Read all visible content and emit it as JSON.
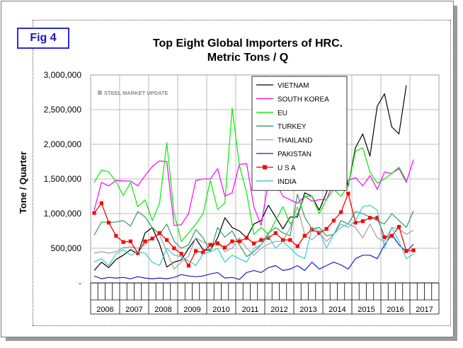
{
  "figure_label": "Fig 4",
  "chart_data": {
    "type": "line",
    "title": "Top Eight Global Importers of HRC.",
    "subtitle": "Metric Tons / Q",
    "ylabel": "Tone / Quarter",
    "xlabel": "",
    "ylim": [
      0,
      3000000
    ],
    "y_ticks": [
      0,
      500000,
      1000000,
      1500000,
      2000000,
      2500000,
      3000000
    ],
    "y_tick_labels": [
      "-",
      "500,000",
      "1,000,000",
      "1,500,000",
      "2,000,000",
      "2,500,000",
      "3,000,000"
    ],
    "x_tick_labels": [
      "2006",
      "2007",
      "2008",
      "2009",
      "2010",
      "2011",
      "2012",
      "2013",
      "2014",
      "2015",
      "2016",
      "2017"
    ],
    "quarters_per_year": 4,
    "grid": true,
    "legend_position": "top-right",
    "watermark": "STEEL MARKET UPDATE",
    "series": [
      {
        "name": "VIETNAM",
        "color": "#000000",
        "marker": "none",
        "values": [
          180000,
          300000,
          220000,
          340000,
          400000,
          480000,
          420000,
          720000,
          800000,
          560000,
          230000,
          300000,
          330000,
          500000,
          640000,
          480000,
          470000,
          650000,
          940000,
          800000,
          750000,
          650000,
          850000,
          900000,
          1120000,
          950000,
          780000,
          950000,
          950000,
          1300000,
          1250000,
          1050000,
          1300000,
          1700000,
          1800000,
          1400000,
          1950000,
          2150000,
          1830000,
          2550000,
          2730000,
          2250000,
          2150000,
          2850000
        ]
      },
      {
        "name": "SOUTH KOREA",
        "color": "#ff00ff",
        "marker": "none",
        "values": [
          1050000,
          1450000,
          1400000,
          1480000,
          1470000,
          1470000,
          1400000,
          1550000,
          1680000,
          1760000,
          1750000,
          830000,
          840000,
          1000000,
          1480000,
          1500000,
          1500000,
          1650000,
          1250000,
          1300000,
          1710000,
          1720000,
          1100000,
          830000,
          1470000,
          1450000,
          1250000,
          1200000,
          1150000,
          1250000,
          1180000,
          1200000,
          1200000,
          1450000,
          1430000,
          1480000,
          1520000,
          1400000,
          1550000,
          1350000,
          1600000,
          1580000,
          1650000,
          1450000,
          1780000
        ]
      },
      {
        "name": "EU",
        "color": "#00ee00",
        "marker": "none",
        "values": [
          1450000,
          1630000,
          1600000,
          1460000,
          1260000,
          1450000,
          1100000,
          1200000,
          900000,
          1150000,
          2020000,
          1000000,
          600000,
          720000,
          850000,
          1000000,
          1480000,
          1060000,
          1150000,
          2520000,
          1700000,
          1300000,
          700000,
          800000,
          700000,
          900000,
          1100000,
          850000,
          1000000,
          1250000,
          1250000,
          1000000,
          1200000,
          1350000,
          1250000,
          1400000,
          1900000,
          1950000,
          1600000,
          1440000,
          1500000,
          1580000,
          1670000,
          1480000
        ]
      },
      {
        "name": "TURKEY",
        "color": "#339966",
        "marker": "none",
        "values": [
          690000,
          880000,
          870000,
          880000,
          900000,
          820000,
          1030000,
          950000,
          800000,
          700000,
          850000,
          600000,
          500000,
          550000,
          770000,
          650000,
          450000,
          800000,
          660000,
          750000,
          550000,
          380000,
          450000,
          550000,
          720000,
          800000,
          720000,
          680000,
          1280000,
          950000,
          780000,
          800000,
          680000,
          700000,
          900000,
          850000,
          1030000,
          1000000,
          950000,
          900000,
          850000,
          1000000,
          900000,
          800000,
          1040000
        ]
      },
      {
        "name": "THAILAND",
        "color": "#a0a0a0",
        "marker": "none",
        "values": [
          430000,
          450000,
          430000,
          450000,
          510000,
          520000,
          500000,
          550000,
          650000,
          700000,
          450000,
          200000,
          300000,
          390000,
          650000,
          590000,
          550000,
          600000,
          450000,
          500000,
          650000,
          500000,
          400000,
          500000,
          560000,
          600000,
          600000,
          800000,
          1100000,
          700000,
          620000,
          720000,
          600000,
          700000,
          800000,
          850000,
          800000,
          650000,
          850000,
          650000,
          600000,
          800000,
          780000,
          700000,
          760000
        ]
      },
      {
        "name": "PAKISTAN",
        "color": "#1c1cc8",
        "marker": "none",
        "values": [
          100000,
          60000,
          80000,
          70000,
          80000,
          60000,
          90000,
          70000,
          60000,
          70000,
          60000,
          80000,
          120000,
          100000,
          90000,
          100000,
          130000,
          150000,
          70000,
          80000,
          50000,
          150000,
          180000,
          150000,
          220000,
          250000,
          180000,
          200000,
          250000,
          180000,
          300000,
          200000,
          250000,
          300000,
          260000,
          200000,
          350000,
          400000,
          400000,
          350000,
          550000,
          700000,
          550000,
          450000,
          560000
        ]
      },
      {
        "name": "U S A",
        "color": "#ff0000",
        "marker": "square",
        "values": [
          1010000,
          1150000,
          870000,
          680000,
          590000,
          600000,
          430000,
          600000,
          640000,
          720000,
          620000,
          500000,
          420000,
          250000,
          460000,
          440000,
          550000,
          570000,
          510000,
          600000,
          600000,
          650000,
          570000,
          620000,
          650000,
          720000,
          620000,
          620000,
          530000,
          680000,
          770000,
          720000,
          780000,
          900000,
          1020000,
          1290000,
          870000,
          890000,
          940000,
          940000,
          660000,
          680000,
          810000,
          460000,
          470000
        ]
      },
      {
        "name": "INDIA",
        "color": "#33cccc",
        "marker": "none",
        "values": [
          300000,
          350000,
          250000,
          420000,
          480000,
          400000,
          450000,
          430000,
          300000,
          250000,
          500000,
          400000,
          380000,
          320000,
          250000,
          420000,
          450000,
          500000,
          300000,
          400000,
          350000,
          300000,
          500000,
          550000,
          680000,
          500000,
          600000,
          500000,
          400000,
          350000,
          800000,
          750000,
          500000,
          700000,
          850000,
          800000,
          900000,
          1100000,
          1120000,
          1050000,
          500000,
          800000,
          600000,
          350000,
          420000
        ]
      }
    ]
  }
}
